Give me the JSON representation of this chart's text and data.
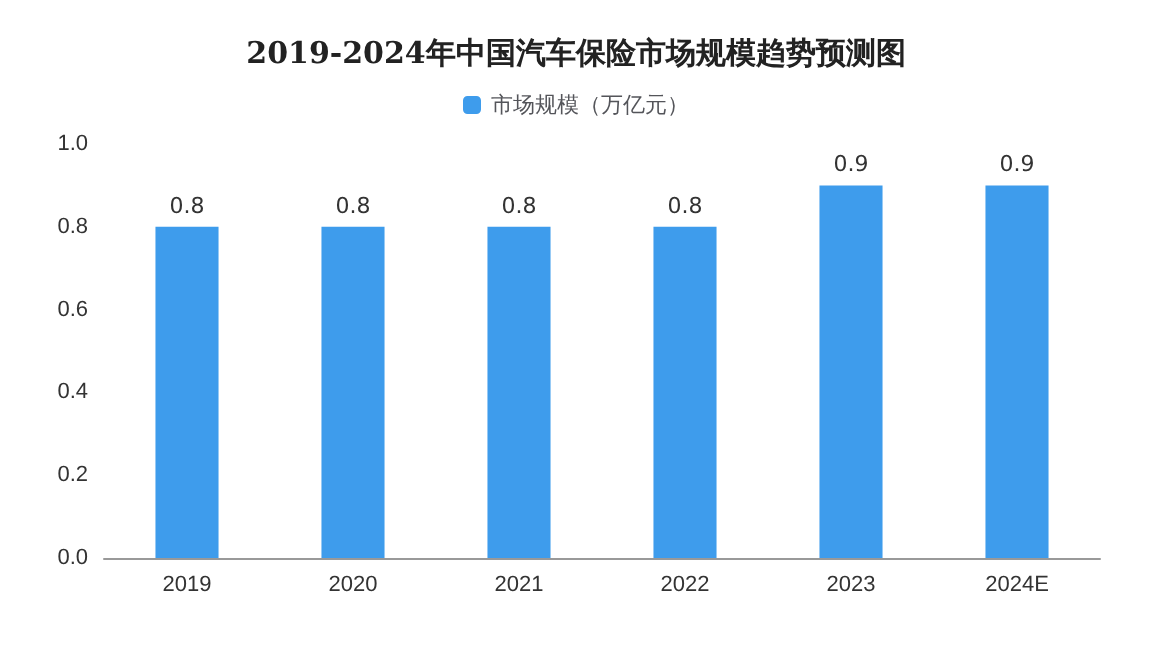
{
  "chart_data": {
    "type": "bar",
    "title": "2019-2024年中国汽车保险市场规模趋势预测图",
    "categories": [
      "2019",
      "2020",
      "2021",
      "2022",
      "2023",
      "2024E"
    ],
    "series": [
      {
        "name": "市场规模（万亿元）",
        "color": "#3e9cec",
        "values": [
          0.8,
          0.8,
          0.8,
          0.8,
          0.9,
          0.9
        ]
      }
    ],
    "ylim": [
      0,
      1
    ],
    "yticks": [
      {
        "value": 0,
        "label": "0.0"
      },
      {
        "value": 0.2,
        "label": "0.2"
      },
      {
        "value": 0.4,
        "label": "0.4"
      },
      {
        "value": 0.6,
        "label": "0.6"
      },
      {
        "value": 0.8,
        "label": "0.8"
      },
      {
        "value": 1,
        "label": "1.0"
      }
    ],
    "data_labels": true,
    "legend": "top",
    "grid": false
  }
}
